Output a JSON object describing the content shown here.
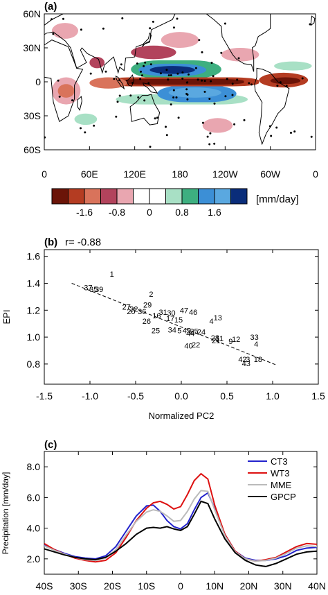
{
  "chart_data": [
    {
      "panel": "(a)",
      "type": "heatmap",
      "description_of_values": "precipitation anomaly map, near-global",
      "y_tick_labels": [
        "60N",
        "30N",
        "0",
        "30S",
        "60S"
      ],
      "x_tick_labels": [
        "0",
        "60E",
        "120E",
        "180",
        "120W",
        "60W",
        "0"
      ],
      "colorbar": {
        "unit_label": "[mm/day]",
        "tick_labels": [
          "-1.6",
          "-0.8",
          "0",
          "0.8",
          "1.6"
        ],
        "colors": [
          "#6b1408",
          "#b43c22",
          "#d9735b",
          "#b2435c",
          "#e9a6b0",
          "#ffffff",
          "#ffffff",
          "#a8e0c5",
          "#3daf80",
          "#3c8fd6",
          "#5aa8e0",
          "#0a2d7a"
        ],
        "levels": [
          -2.0,
          -1.6,
          -1.2,
          -0.8,
          -0.4,
          0,
          0.4,
          0.8,
          1.2,
          1.6,
          2.0
        ]
      },
      "features": [
        {
          "kind": "positive",
          "lon": [
            120,
            230
          ],
          "lat": [
            3,
            18
          ],
          "note": "blue band north of equator, west-central Pacific"
        },
        {
          "kind": "negative",
          "lon": [
            90,
            280
          ],
          "lat": [
            -3,
            3
          ],
          "note": "red band along equator"
        },
        {
          "kind": "positive",
          "lon": [
            150,
            250
          ],
          "lat": [
            -15,
            -4
          ],
          "note": "blue band south of equator"
        },
        {
          "kind": "positive_light",
          "lon": [
            95,
            260
          ],
          "lat": [
            -20,
            -12
          ],
          "note": "green SPCZ band"
        },
        {
          "kind": "negative_light",
          "lon": [
            10,
            50
          ],
          "lat": [
            -20,
            5
          ],
          "note": "red patches over Africa / Indian Ocean"
        }
      ]
    },
    {
      "panel": "(b)",
      "type": "scatter",
      "annotation": "r= -0.88",
      "xlabel": "Normalized PC2",
      "ylabel": "EPI",
      "xlim": [
        -1.5,
        1.5
      ],
      "ylim": [
        0.65,
        1.65
      ],
      "x_ticks": [
        "-1.5",
        "-1.0",
        "-0.5",
        "0.0",
        "0.5",
        "1.0",
        "1.5"
      ],
      "y_ticks": [
        "0.8",
        "1.0",
        "1.2",
        "1.4",
        "1.6"
      ],
      "regression_line": {
        "x": [
          -1.2,
          1.05
        ],
        "y": [
          1.4,
          0.79
        ],
        "style": "dashed"
      },
      "points": [
        {
          "label": "1",
          "x": -0.76,
          "y": 1.47
        },
        {
          "label": "37",
          "x": -1.02,
          "y": 1.37
        },
        {
          "label": "35",
          "x": -0.96,
          "y": 1.355
        },
        {
          "label": "39",
          "x": -0.9,
          "y": 1.355
        },
        {
          "label": "2",
          "x": -0.33,
          "y": 1.32
        },
        {
          "label": "29",
          "x": -0.37,
          "y": 1.24
        },
        {
          "label": "27",
          "x": -0.6,
          "y": 1.225
        },
        {
          "label": "32",
          "x": -0.52,
          "y": 1.21
        },
        {
          "label": "20",
          "x": -0.55,
          "y": 1.19
        },
        {
          "label": "36",
          "x": -0.43,
          "y": 1.19
        },
        {
          "label": "31",
          "x": -0.2,
          "y": 1.185
        },
        {
          "label": "30",
          "x": -0.11,
          "y": 1.18
        },
        {
          "label": "47",
          "x": 0.03,
          "y": 1.2
        },
        {
          "label": "46",
          "x": 0.13,
          "y": 1.185
        },
        {
          "label": "16",
          "x": -0.27,
          "y": 1.16
        },
        {
          "label": "17",
          "x": -0.12,
          "y": 1.14
        },
        {
          "label": "15",
          "x": -0.03,
          "y": 1.13
        },
        {
          "label": "13",
          "x": 0.4,
          "y": 1.145
        },
        {
          "label": "26",
          "x": -0.38,
          "y": 1.12
        },
        {
          "label": "4",
          "x": 0.33,
          "y": 1.12
        },
        {
          "label": "25",
          "x": -0.28,
          "y": 1.05
        },
        {
          "label": "34",
          "x": -0.1,
          "y": 1.055
        },
        {
          "label": "5",
          "x": -0.02,
          "y": 1.05
        },
        {
          "label": "45",
          "x": 0.06,
          "y": 1.05
        },
        {
          "label": "25",
          "x": 0.14,
          "y": 1.045
        },
        {
          "label": "24",
          "x": 0.22,
          "y": 1.04
        },
        {
          "label": "44",
          "x": 0.1,
          "y": 1.03
        },
        {
          "label": "28",
          "x": 0.37,
          "y": 0.995
        },
        {
          "label": "11",
          "x": 0.42,
          "y": 0.99
        },
        {
          "label": "12",
          "x": 0.6,
          "y": 0.985
        },
        {
          "label": "21",
          "x": 0.38,
          "y": 0.975
        },
        {
          "label": "9",
          "x": 0.54,
          "y": 0.97
        },
        {
          "label": "33",
          "x": 0.8,
          "y": 1.0
        },
        {
          "label": "4",
          "x": 0.82,
          "y": 0.95
        },
        {
          "label": "22",
          "x": 0.16,
          "y": 0.945
        },
        {
          "label": "40",
          "x": 0.08,
          "y": 0.935
        },
        {
          "label": "42",
          "x": 0.67,
          "y": 0.835
        },
        {
          "label": "3",
          "x": 0.73,
          "y": 0.835
        },
        {
          "label": "18",
          "x": 0.84,
          "y": 0.835
        },
        {
          "label": "43",
          "x": 0.71,
          "y": 0.805
        }
      ]
    },
    {
      "panel": "(c)",
      "type": "line",
      "ylabel": "Precipitation [mm/day]",
      "xlabel": "",
      "xlim": [
        -40,
        40
      ],
      "ylim": [
        1.0,
        9.0
      ],
      "x_ticks": [
        "40S",
        "30S",
        "20S",
        "10S",
        "0",
        "10N",
        "20N",
        "30N",
        "40N"
      ],
      "y_ticks": [
        "2.0",
        "4.0",
        "6.0",
        "8.0"
      ],
      "legend_position": "right",
      "x": [
        -40,
        -37,
        -34,
        -31,
        -28,
        -25,
        -22,
        -19,
        -16,
        -13,
        -10,
        -8,
        -6,
        -4,
        -2,
        0,
        2,
        4,
        6,
        8,
        10,
        13,
        16,
        19,
        22,
        25,
        28,
        31,
        34,
        37,
        40
      ],
      "series": [
        {
          "name": "CT3",
          "color": "#2222cc",
          "values": [
            2.9,
            2.6,
            2.35,
            2.15,
            2.05,
            2.0,
            2.2,
            2.8,
            3.8,
            4.8,
            5.45,
            5.5,
            5.1,
            4.5,
            4.1,
            3.95,
            4.3,
            5.2,
            6.0,
            6.3,
            5.3,
            3.6,
            2.5,
            2.05,
            1.9,
            1.9,
            2.0,
            2.2,
            2.55,
            2.7,
            2.75
          ]
        },
        {
          "name": "WT3",
          "color": "#dd1111",
          "values": [
            3.0,
            2.6,
            2.3,
            2.05,
            1.9,
            1.8,
            1.9,
            2.4,
            3.4,
            4.5,
            5.3,
            5.65,
            5.75,
            5.55,
            5.25,
            5.4,
            6.2,
            7.1,
            7.55,
            7.2,
            5.5,
            3.6,
            2.5,
            2.0,
            1.85,
            1.95,
            2.1,
            2.45,
            2.8,
            3.0,
            2.95
          ]
        },
        {
          "name": "MME",
          "color": "#bbbbbb",
          "values": [
            2.85,
            2.55,
            2.3,
            2.1,
            1.95,
            1.9,
            2.05,
            2.6,
            3.55,
            4.45,
            5.05,
            5.2,
            5.1,
            4.8,
            4.45,
            4.5,
            5.1,
            5.9,
            6.45,
            6.4,
            5.2,
            3.5,
            2.45,
            2.0,
            1.85,
            1.9,
            2.05,
            2.35,
            2.7,
            2.85,
            2.8
          ]
        },
        {
          "name": "GPCP",
          "color": "#000000",
          "values": [
            2.65,
            2.45,
            2.25,
            2.1,
            2.0,
            1.95,
            2.1,
            2.5,
            3.0,
            3.6,
            4.0,
            4.05,
            4.0,
            4.1,
            3.95,
            3.85,
            4.1,
            4.9,
            5.75,
            5.6,
            4.6,
            3.3,
            2.4,
            1.9,
            1.6,
            1.5,
            1.7,
            2.0,
            2.3,
            2.45,
            2.5
          ]
        }
      ]
    }
  ]
}
